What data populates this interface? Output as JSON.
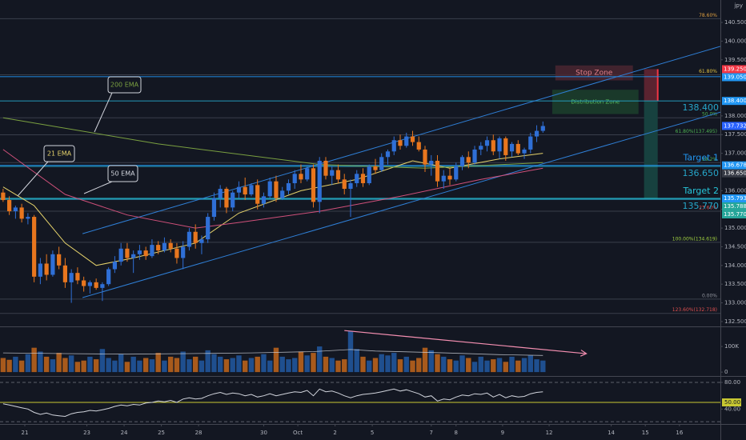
{
  "chart_data": [
    {
      "type": "candlestick",
      "unit_label": "jpy",
      "x": [
        0,
        1,
        2,
        3,
        4,
        5,
        6,
        7,
        8,
        9,
        10,
        11,
        12,
        13,
        14,
        15,
        16,
        17,
        18,
        19,
        20,
        21,
        22,
        23,
        24,
        25,
        26,
        27,
        28,
        29,
        30,
        31,
        32,
        33,
        34,
        35,
        36,
        37,
        38,
        39,
        40,
        41,
        42,
        43,
        44,
        45,
        46,
        47,
        48,
        49,
        50,
        51,
        52,
        53,
        54,
        55,
        56,
        57,
        58,
        59,
        60,
        61,
        62,
        63,
        64,
        65,
        66,
        67,
        68,
        69,
        70,
        71,
        72,
        73,
        74,
        75,
        76,
        77,
        78,
        79,
        80,
        81,
        82,
        83,
        84,
        85,
        86,
        87
      ],
      "open": [
        135.95,
        135.75,
        135.45,
        135.55,
        135.25,
        135.3,
        133.7,
        134.05,
        133.75,
        134.3,
        134.0,
        133.55,
        133.8,
        133.6,
        133.45,
        133.55,
        133.4,
        133.5,
        133.9,
        134.1,
        134.45,
        134.2,
        134.3,
        134.4,
        134.25,
        134.55,
        134.4,
        134.6,
        134.45,
        134.2,
        134.5,
        134.9,
        134.6,
        134.7,
        135.3,
        135.8,
        136.05,
        135.55,
        135.95,
        136.1,
        135.9,
        136.15,
        135.65,
        135.85,
        136.25,
        135.8,
        136.0,
        136.2,
        136.45,
        136.3,
        136.6,
        135.7,
        136.8,
        136.4,
        136.55,
        136.3,
        136.05,
        136.2,
        136.45,
        136.2,
        136.65,
        136.55,
        136.9,
        137.05,
        137.35,
        137.2,
        137.45,
        137.3,
        137.1,
        136.7,
        136.8,
        136.25,
        136.4,
        136.3,
        136.65,
        136.9,
        136.75,
        137.1,
        137.2,
        137.35,
        137.05,
        137.4,
        137.05,
        137.25,
        137.0,
        137.1,
        137.45,
        137.6
      ],
      "high": [
        136.05,
        135.85,
        135.6,
        135.65,
        135.4,
        135.35,
        134.2,
        134.3,
        134.4,
        134.5,
        134.2,
        133.9,
        133.95,
        133.7,
        133.6,
        133.65,
        133.55,
        133.95,
        134.25,
        134.6,
        134.6,
        134.4,
        134.55,
        134.5,
        134.7,
        134.65,
        134.75,
        134.7,
        134.6,
        134.65,
        135.0,
        135.1,
        134.8,
        135.4,
        135.95,
        136.15,
        136.1,
        136.0,
        136.25,
        136.35,
        136.2,
        136.3,
        135.95,
        136.35,
        136.4,
        136.1,
        136.3,
        136.55,
        136.7,
        136.65,
        136.7,
        136.9,
        136.9,
        136.65,
        136.7,
        136.45,
        136.3,
        136.55,
        136.6,
        136.7,
        136.85,
        137.0,
        137.1,
        137.45,
        137.5,
        137.55,
        137.6,
        137.45,
        137.2,
        136.95,
        136.95,
        136.55,
        136.6,
        136.75,
        136.95,
        137.05,
        137.2,
        137.3,
        137.45,
        137.5,
        137.45,
        137.45,
        137.3,
        137.35,
        137.15,
        137.55,
        137.75,
        137.85
      ],
      "low": [
        135.7,
        135.35,
        135.25,
        135.15,
        135.1,
        133.55,
        133.5,
        133.6,
        133.7,
        133.9,
        133.4,
        133.0,
        133.5,
        133.3,
        133.25,
        133.35,
        133.05,
        133.45,
        133.8,
        134.0,
        134.1,
        133.8,
        134.15,
        134.15,
        134.2,
        134.3,
        134.35,
        134.35,
        134.05,
        133.9,
        134.4,
        134.45,
        134.3,
        134.6,
        135.2,
        135.55,
        135.4,
        135.45,
        135.8,
        135.75,
        135.85,
        135.5,
        135.55,
        135.8,
        135.7,
        135.75,
        135.9,
        136.05,
        136.2,
        136.25,
        135.55,
        135.4,
        136.3,
        136.15,
        136.2,
        135.9,
        135.3,
        136.1,
        136.1,
        136.15,
        136.45,
        136.5,
        136.7,
        136.95,
        137.1,
        137.15,
        137.2,
        137.05,
        136.5,
        136.4,
        136.1,
        136.05,
        136.15,
        136.25,
        136.55,
        136.6,
        136.7,
        136.95,
        137.05,
        136.95,
        136.85,
        136.8,
        136.9,
        136.95,
        136.85,
        137.0,
        137.3,
        137.55
      ],
      "close": [
        135.75,
        135.45,
        135.55,
        135.25,
        135.3,
        133.7,
        134.05,
        133.75,
        134.3,
        134.0,
        133.55,
        133.8,
        133.6,
        133.45,
        133.55,
        133.4,
        133.5,
        133.9,
        134.1,
        134.45,
        134.2,
        134.3,
        134.4,
        134.25,
        134.55,
        134.4,
        134.6,
        134.45,
        134.2,
        134.5,
        134.9,
        134.6,
        134.7,
        135.3,
        135.8,
        136.05,
        135.55,
        135.95,
        136.1,
        135.9,
        136.15,
        135.65,
        135.85,
        136.25,
        135.8,
        136.0,
        136.2,
        136.45,
        136.3,
        136.6,
        135.7,
        136.8,
        136.4,
        136.55,
        136.3,
        136.05,
        136.2,
        136.45,
        136.2,
        136.65,
        136.55,
        136.9,
        137.05,
        137.35,
        137.2,
        137.45,
        137.3,
        137.1,
        136.7,
        136.8,
        136.25,
        136.4,
        136.3,
        136.65,
        136.9,
        136.75,
        137.1,
        137.2,
        137.35,
        137.05,
        137.4,
        136.95,
        137.25,
        137.0,
        137.1,
        137.45,
        137.6,
        137.73
      ],
      "up_color": "#2f6fd6",
      "down_color": "#e8761e",
      "volume_up_color": "#1f4f8f",
      "volume_down_color": "#a85a1c",
      "overlays": [
        {
          "name": "21 EMA",
          "color": "#e6d36b",
          "x": [
            0,
            5,
            10,
            15,
            21,
            31,
            38,
            48,
            57,
            66,
            72,
            80,
            87
          ],
          "values": [
            136.1,
            135.6,
            134.6,
            134.0,
            134.2,
            134.6,
            135.4,
            136.0,
            136.3,
            136.8,
            136.6,
            136.85,
            137.0
          ]
        },
        {
          "name": "50 EMA",
          "color": "#d0507a",
          "x": [
            0,
            5,
            10,
            20,
            31,
            38,
            51,
            64,
            77,
            87
          ],
          "values": [
            137.1,
            136.5,
            135.9,
            135.35,
            135.0,
            135.15,
            135.45,
            135.85,
            136.3,
            136.6
          ]
        },
        {
          "name": "200 EMA",
          "color": "#7aa040",
          "x": [
            0,
            25,
            51,
            68,
            87
          ],
          "values": [
            137.95,
            137.25,
            136.7,
            136.6,
            136.75
          ]
        }
      ],
      "trendlines": [
        {
          "x": [
            12.8,
            115.6
          ],
          "values": [
            134.85,
            139.86
          ]
        },
        {
          "x": [
            12.8,
            115.6
          ],
          "values": [
            133.14,
            138.1
          ]
        }
      ],
      "trendline_color": "#2f7fd6",
      "levels": [
        {
          "label": "78.60%",
          "value": 140.6,
          "color": "#e0a040"
        },
        {
          "label": "61.80%",
          "value": 139.1,
          "color": "#e0c040"
        },
        {
          "label": "50.0%",
          "value": 137.95,
          "color": "#4caf50"
        },
        {
          "label": "61.80%(137.495)",
          "value": 137.495,
          "color": "#4caf50"
        },
        {
          "label": "38.2%",
          "value": 136.75,
          "color": "#4caf50"
        },
        {
          "label": "23.60%",
          "value": 135.45,
          "color": "#e05050"
        },
        {
          "label": "100.00%(134.619)",
          "value": 134.619,
          "color": "#a0d040"
        },
        {
          "label": "0.00%",
          "value": 133.1,
          "color": "#9598a1"
        },
        {
          "label": "123.60%(132.718)",
          "value": 132.718,
          "color": "#e05050"
        }
      ],
      "price_levels": [
        {
          "value": 139.05,
          "color": "#2196f3"
        },
        {
          "value": 138.4,
          "color": "#26a6c9",
          "label": "138.400"
        },
        {
          "value": 136.678,
          "color": "#2196f3",
          "name": "Target 1"
        },
        {
          "value": 136.65,
          "color": "#26a6c9",
          "label": "136.650"
        },
        {
          "value": 135.793,
          "color": "#26c6da",
          "name": "Target 2"
        },
        {
          "value": 135.77,
          "color": "#26a6c9",
          "label": "135.770"
        }
      ],
      "zones": [
        {
          "label": "Stop Zone",
          "top": 139.35,
          "bottom": 138.95,
          "x": [
            89,
            101.5
          ],
          "color": "#4a2630",
          "text_color": "#e0808a"
        },
        {
          "label": "Distribution Zone",
          "top": 138.7,
          "bottom": 138.05,
          "x": [
            88.5,
            102.4
          ],
          "color": "#1c3f2c",
          "text_color": "#58c060"
        }
      ],
      "position": {
        "stop": 139.25,
        "entry": 138.4,
        "target": 135.79,
        "x": [
          103.3,
          105.5
        ]
      },
      "price_tags": [
        {
          "value": 139.25,
          "label": "139.250",
          "color": "#f23645"
        },
        {
          "value": 139.05,
          "label": "139.050",
          "color": "#2196f3"
        },
        {
          "value": 138.4,
          "label": "138.400",
          "color": "#2196f3"
        },
        {
          "value": 137.732,
          "label": "137.732",
          "color": "#2962ff"
        },
        {
          "value": 136.678,
          "label": "136.678",
          "color": "#2196f3"
        },
        {
          "value": 136.65,
          "label": "136.650",
          "color": "#363a45"
        },
        {
          "value": 135.793,
          "label": "135.793",
          "color": "#2196f3"
        },
        {
          "value": 135.788,
          "label": "135.788",
          "color": "#26a69a"
        },
        {
          "value": 135.77,
          "label": "135.770",
          "color": "#26a69a"
        }
      ],
      "xlim": [
        -0.5,
        115.6
      ],
      "xticks": [
        {
          "value": 3.5,
          "label": "21"
        },
        {
          "value": 13.5,
          "label": "23"
        },
        {
          "value": 19.5,
          "label": "24"
        },
        {
          "value": 25.5,
          "label": "25"
        },
        {
          "value": 31.5,
          "label": "28"
        },
        {
          "value": 42,
          "label": "30"
        },
        {
          "value": 47.5,
          "label": "Oct"
        },
        {
          "value": 53.5,
          "label": "2"
        },
        {
          "value": 59.5,
          "label": "5"
        },
        {
          "value": 69,
          "label": "7"
        },
        {
          "value": 73,
          "label": "8"
        },
        {
          "value": 80.5,
          "label": "9"
        },
        {
          "value": 88,
          "label": "12"
        },
        {
          "value": 98,
          "label": "14"
        },
        {
          "value": 103.5,
          "label": "15"
        },
        {
          "value": 109,
          "label": "16"
        }
      ],
      "ylim": [
        132.37,
        141.1
      ],
      "yticks": [
        {
          "value": 140.5,
          "label": "140.500"
        },
        {
          "value": 140.0,
          "label": "140.000"
        },
        {
          "value": 139.5,
          "label": "139.500"
        },
        {
          "value": 138.0,
          "label": "138.000"
        },
        {
          "value": 137.5,
          "label": "137.500"
        },
        {
          "value": 137.0,
          "label": "137.000"
        },
        {
          "value": 136.0,
          "label": "136.000"
        },
        {
          "value": 135.5,
          "label": "135.500"
        },
        {
          "value": 135.0,
          "label": "135.000"
        },
        {
          "value": 134.5,
          "label": "134.500"
        },
        {
          "value": 134.0,
          "label": "134.000"
        },
        {
          "value": 133.5,
          "label": "133.500"
        },
        {
          "value": 133.0,
          "label": "133.000"
        },
        {
          "value": 132.5,
          "label": "132.500"
        }
      ]
    },
    {
      "type": "volume",
      "values": [
        55000,
        48000,
        60000,
        45000,
        70000,
        95000,
        80000,
        60000,
        50000,
        75000,
        55000,
        65000,
        40000,
        45000,
        60000,
        50000,
        90000,
        55000,
        45000,
        70000,
        40000,
        60000,
        45000,
        55000,
        50000,
        75000,
        45000,
        60000,
        55000,
        80000,
        50000,
        60000,
        45000,
        85000,
        70000,
        60000,
        50000,
        55000,
        65000,
        45000,
        55000,
        60000,
        70000,
        45000,
        95000,
        60000,
        50000,
        55000,
        80000,
        65000,
        75000,
        100000,
        60000,
        55000,
        45000,
        50000,
        160000,
        90000,
        60000,
        45000,
        55000,
        70000,
        65000,
        75000,
        50000,
        60000,
        45000,
        55000,
        95000,
        85000,
        70000,
        60000,
        50000,
        45000,
        65000,
        55000,
        40000,
        60000,
        45000,
        50000,
        55000,
        40000,
        60000,
        45000,
        55000,
        65000,
        50000,
        45000
      ],
      "average": {
        "x": [
          0,
          10,
          20,
          30,
          40,
          50,
          56,
          60,
          70,
          80,
          87
        ],
        "values": [
          75000,
          72000,
          70000,
          72000,
          75000,
          80000,
          88000,
          82000,
          76000,
          68000,
          65000
        ],
        "color": "#d1d4dc"
      },
      "trendline": {
        "x": [
          55,
          94
        ],
        "values": [
          162000,
          72000
        ],
        "color": "#f48fb1"
      },
      "ylim": [
        -9000,
        172000
      ],
      "yticks": [
        {
          "value": 100000,
          "label": "100K"
        },
        0
      ]
    },
    {
      "type": "line",
      "values": [
        48,
        46,
        44,
        42,
        40,
        35,
        32,
        34,
        31,
        30,
        29,
        33,
        35,
        36,
        38,
        37,
        39,
        41,
        44,
        46,
        45,
        47,
        46,
        49,
        50,
        52,
        51,
        53,
        50,
        55,
        57,
        55,
        56,
        60,
        63,
        65,
        62,
        64,
        63,
        60,
        62,
        58,
        60,
        63,
        60,
        62,
        64,
        66,
        65,
        68,
        60,
        70,
        66,
        67,
        64,
        60,
        57,
        60,
        62,
        63,
        64,
        66,
        68,
        70,
        67,
        69,
        66,
        63,
        58,
        60,
        52,
        55,
        54,
        58,
        61,
        60,
        63,
        62,
        64,
        58,
        62,
        57,
        60,
        58,
        59,
        63,
        65,
        66
      ],
      "color": "#d1d4dc",
      "midline": 50,
      "midline_color": "#c8c832",
      "bands": [
        80,
        21
      ],
      "ylim": [
        17.6,
        87.2
      ],
      "yticks": [
        {
          "value": 80,
          "label": "80.00"
        },
        {
          "value": 50,
          "label": "50.00"
        },
        {
          "value": 40,
          "label": "40.00"
        }
      ]
    }
  ]
}
